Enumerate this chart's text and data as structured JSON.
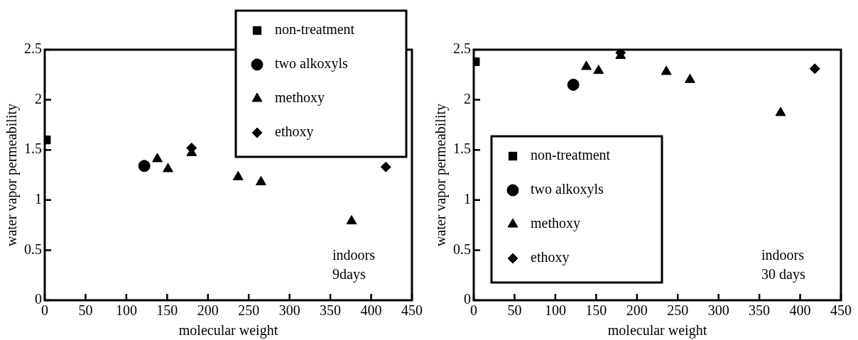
{
  "chart_data": [
    {
      "type": "scatter",
      "xlabel": "molecular weight",
      "ylabel": "water vapor permeability",
      "xlim": [
        0,
        450
      ],
      "ylim": [
        0,
        2.5
      ],
      "xticks": [
        0,
        50,
        100,
        150,
        200,
        250,
        300,
        350,
        400,
        450
      ],
      "yticks": [
        0,
        0.5,
        1,
        1.5,
        2,
        2.5
      ],
      "grid": false,
      "legend": "top right",
      "annotations": [
        "indoors\n9days"
      ],
      "series": [
        {
          "name": "non-treatment",
          "color": "#000000",
          "marker": "square",
          "x": [
            2
          ],
          "values": [
            1.6
          ]
        },
        {
          "name": "two alkoxyls",
          "color": "#000000",
          "marker": "circle",
          "x": [
            122
          ],
          "values": [
            1.34
          ]
        },
        {
          "name": "methoxy",
          "color": "#000000",
          "marker": "triangle",
          "x": [
            138,
            151,
            180,
            237,
            265,
            376
          ],
          "values": [
            1.41,
            1.31,
            1.47,
            1.23,
            1.18,
            0.79
          ]
        },
        {
          "name": "ethoxy",
          "color": "#000000",
          "marker": "diamond",
          "x": [
            180,
            418
          ],
          "values": [
            1.52,
            1.33
          ]
        }
      ]
    },
    {
      "type": "scatter",
      "xlabel": "molecular weight",
      "ylabel": "water vapor permeability",
      "xlim": [
        0,
        450
      ],
      "ylim": [
        0,
        2.5
      ],
      "xticks": [
        0,
        50,
        100,
        150,
        200,
        250,
        300,
        350,
        400,
        450
      ],
      "yticks": [
        0,
        0.5,
        1,
        1.5,
        2,
        2.5
      ],
      "grid": false,
      "legend": "bottom left",
      "annotations": [
        "indoors\n30 days"
      ],
      "series": [
        {
          "name": "non-treatment",
          "color": "#000000",
          "marker": "square",
          "x": [
            2
          ],
          "values": [
            2.38
          ]
        },
        {
          "name": "two alkoxyls",
          "color": "#000000",
          "marker": "circle",
          "x": [
            122
          ],
          "values": [
            2.15
          ]
        },
        {
          "name": "methoxy",
          "color": "#000000",
          "marker": "triangle",
          "x": [
            138,
            153,
            180,
            236,
            265,
            376
          ],
          "values": [
            2.33,
            2.29,
            2.44,
            2.28,
            2.2,
            1.87
          ]
        },
        {
          "name": "ethoxy",
          "color": "#000000",
          "marker": "diamond",
          "x": [
            180,
            418
          ],
          "values": [
            2.47,
            2.31
          ]
        }
      ]
    }
  ]
}
